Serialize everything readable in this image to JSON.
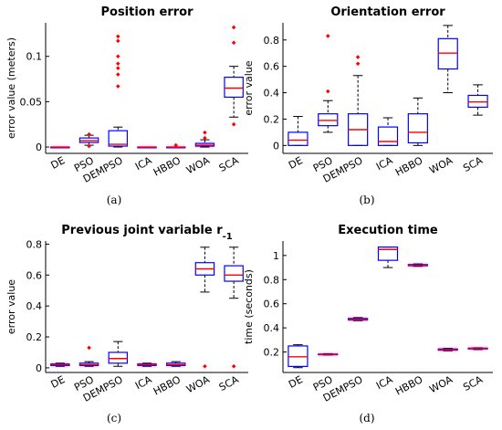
{
  "captions": [
    "(a)",
    "(b)",
    "(c)",
    "(d)"
  ],
  "chart_data": [
    {
      "type": "box",
      "title": "Position error",
      "ylabel": "error value (meters)",
      "categories": [
        "DE",
        "PSO",
        "DEMPSO",
        "ICA",
        "HBBO",
        "WOA",
        "SCA"
      ],
      "ylim": [
        -0.007,
        0.137
      ],
      "yticks": [
        0,
        0.05,
        0.1
      ],
      "ytick_labels": [
        "0",
        "0.05",
        "0.1"
      ],
      "boxes": [
        {
          "category": "DE",
          "lw": 0,
          "q1": 0,
          "median": 0,
          "q3": 0,
          "uw": 0,
          "outliers": []
        },
        {
          "category": "PSO",
          "lw": 0.002,
          "q1": 0.005,
          "median": 0.007,
          "q3": 0.01,
          "uw": 0.013,
          "outliers": [
            0.014,
            0.001
          ]
        },
        {
          "category": "DEMPSO",
          "lw": 0,
          "q1": 0.001,
          "median": 0.003,
          "q3": 0.018,
          "uw": 0.022,
          "outliers": [
            0.067,
            0.08,
            0.087,
            0.092,
            0.1,
            0.117,
            0.122
          ]
        },
        {
          "category": "ICA",
          "lw": 0,
          "q1": 0,
          "median": 0,
          "q3": 0,
          "uw": 0,
          "outliers": []
        },
        {
          "category": "HBBO",
          "lw": 0,
          "q1": 0,
          "median": 0,
          "q3": 0,
          "uw": 0,
          "outliers": [
            0.002
          ]
        },
        {
          "category": "WOA",
          "lw": 0,
          "q1": 0.001,
          "median": 0.002,
          "q3": 0.004,
          "uw": 0.008,
          "outliers": [
            0.01,
            0.016
          ]
        },
        {
          "category": "SCA",
          "lw": 0.033,
          "q1": 0.055,
          "median": 0.065,
          "q3": 0.077,
          "uw": 0.089,
          "outliers": [
            0.025,
            0.115,
            0.132
          ]
        }
      ]
    },
    {
      "type": "box",
      "title": "Orientation error",
      "ylabel": "error value",
      "categories": [
        "DE",
        "PSO",
        "DEMPSO",
        "ICA",
        "HBBO",
        "WOA",
        "SCA"
      ],
      "ylim": [
        -0.06,
        0.93
      ],
      "yticks": [
        0,
        0.2,
        0.4,
        0.6,
        0.8
      ],
      "ytick_labels": [
        "0",
        "0.2",
        "0.4",
        "0.6",
        "0.8"
      ],
      "boxes": [
        {
          "category": "DE",
          "lw": 0,
          "q1": 0,
          "median": 0.04,
          "q3": 0.1,
          "uw": 0.22,
          "outliers": []
        },
        {
          "category": "PSO",
          "lw": 0.1,
          "q1": 0.15,
          "median": 0.19,
          "q3": 0.24,
          "uw": 0.34,
          "outliers": [
            0.41,
            0.83
          ]
        },
        {
          "category": "DEMPSO",
          "lw": 0,
          "q1": 0,
          "median": 0.12,
          "q3": 0.24,
          "uw": 0.53,
          "outliers": [
            0.62,
            0.67
          ]
        },
        {
          "category": "ICA",
          "lw": 0,
          "q1": 0,
          "median": 0.03,
          "q3": 0.14,
          "uw": 0.21,
          "outliers": []
        },
        {
          "category": "HBBO",
          "lw": 0,
          "q1": 0.02,
          "median": 0.1,
          "q3": 0.24,
          "uw": 0.36,
          "outliers": []
        },
        {
          "category": "WOA",
          "lw": 0.4,
          "q1": 0.58,
          "median": 0.7,
          "q3": 0.81,
          "uw": 0.91,
          "outliers": []
        },
        {
          "category": "SCA",
          "lw": 0.23,
          "q1": 0.29,
          "median": 0.33,
          "q3": 0.38,
          "uw": 0.46,
          "outliers": []
        }
      ]
    },
    {
      "type": "box",
      "title": "Previous joint variable r",
      "title_subscript": "-1",
      "ylabel": "error value",
      "categories": [
        "DE",
        "PSO",
        "DEMPSO",
        "ICA",
        "HBBO",
        "WOA",
        "SCA"
      ],
      "ylim": [
        -0.03,
        0.82
      ],
      "yticks": [
        0,
        0.2,
        0.4,
        0.6,
        0.8
      ],
      "ytick_labels": [
        "0",
        "0.2",
        "0.4",
        "0.6",
        "0.8"
      ],
      "boxes": [
        {
          "category": "DE",
          "lw": 0.01,
          "q1": 0.015,
          "median": 0.02,
          "q3": 0.025,
          "uw": 0.03,
          "outliers": []
        },
        {
          "category": "PSO",
          "lw": 0.01,
          "q1": 0.015,
          "median": 0.02,
          "q3": 0.03,
          "uw": 0.04,
          "outliers": [
            0.13
          ]
        },
        {
          "category": "DEMPSO",
          "lw": 0.01,
          "q1": 0.03,
          "median": 0.06,
          "q3": 0.1,
          "uw": 0.17,
          "outliers": []
        },
        {
          "category": "ICA",
          "lw": 0.01,
          "q1": 0.015,
          "median": 0.02,
          "q3": 0.025,
          "uw": 0.03,
          "outliers": []
        },
        {
          "category": "HBBO",
          "lw": 0.01,
          "q1": 0.015,
          "median": 0.02,
          "q3": 0.03,
          "uw": 0.04,
          "outliers": []
        },
        {
          "category": "WOA",
          "lw": 0.49,
          "q1": 0.6,
          "median": 0.64,
          "q3": 0.68,
          "uw": 0.78,
          "outliers": [
            0.01
          ]
        },
        {
          "category": "SCA",
          "lw": 0.45,
          "q1": 0.56,
          "median": 0.6,
          "q3": 0.66,
          "uw": 0.78,
          "outliers": [
            0.01
          ]
        }
      ]
    },
    {
      "type": "box",
      "title": "Execution time",
      "ylabel": "time (seconds)",
      "categories": [
        "DE",
        "PSO",
        "DEMPSO",
        "ICA",
        "HBBO",
        "WOA",
        "SCA"
      ],
      "ylim": [
        0.03,
        1.12
      ],
      "yticks": [
        0.2,
        0.4,
        0.6,
        0.8,
        1
      ],
      "ytick_labels": [
        "0.2",
        "0.4",
        "0.6",
        "0.8",
        "1"
      ],
      "boxes": [
        {
          "category": "DE",
          "lw": 0.07,
          "q1": 0.08,
          "median": 0.16,
          "q3": 0.25,
          "uw": 0.26,
          "outliers": []
        },
        {
          "category": "PSO",
          "lw": 0.175,
          "q1": 0.178,
          "median": 0.18,
          "q3": 0.183,
          "uw": 0.186,
          "outliers": []
        },
        {
          "category": "DEMPSO",
          "lw": 0.46,
          "q1": 0.465,
          "median": 0.47,
          "q3": 0.478,
          "uw": 0.485,
          "outliers": []
        },
        {
          "category": "ICA",
          "lw": 0.9,
          "q1": 0.96,
          "median": 1.05,
          "q3": 1.07,
          "uw": 1.07,
          "outliers": []
        },
        {
          "category": "HBBO",
          "lw": 0.91,
          "q1": 0.915,
          "median": 0.92,
          "q3": 0.925,
          "uw": 0.93,
          "outliers": []
        },
        {
          "category": "WOA",
          "lw": 0.21,
          "q1": 0.215,
          "median": 0.22,
          "q3": 0.225,
          "uw": 0.23,
          "outliers": []
        },
        {
          "category": "SCA",
          "lw": 0.22,
          "q1": 0.225,
          "median": 0.228,
          "q3": 0.232,
          "uw": 0.235,
          "outliers": []
        }
      ]
    }
  ],
  "colors": {
    "box": "#0000ff",
    "median": "#ff0000",
    "outlier": "#ff0000",
    "whisker": "#000000",
    "axis": "#000000",
    "compact_box": "#ff00ff"
  }
}
